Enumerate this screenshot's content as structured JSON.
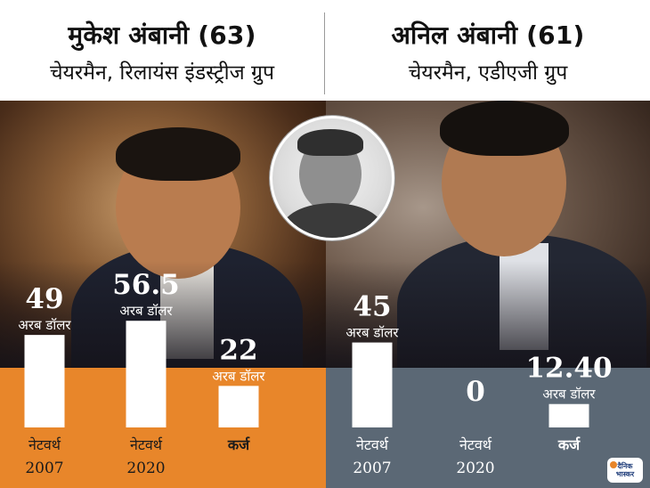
{
  "header": {
    "left": {
      "name": "मुकेश अंबानी (63)",
      "role": "चेयरमैन, रिलायंस इंडस्ट्रीज ग्रुप"
    },
    "right": {
      "name": "अनिल अंबानी (61)",
      "role": "चेयरमैन, एडीएजी ग्रुप"
    }
  },
  "logo": {
    "line1": "दैनिक",
    "line2": "भास्कर"
  },
  "colors": {
    "left_band": "#e8862a",
    "right_band": "#5b6875",
    "bar": "#ffffff",
    "value_text": "#ffffff"
  },
  "chart_data": [
    {
      "type": "bar",
      "unit": "अरब डॉलर",
      "categories": [
        "नेटवर्थ 2007",
        "नेटवर्थ 2020",
        "कर्ज"
      ],
      "category_lines": [
        [
          "नेटवर्थ",
          "2007"
        ],
        [
          "नेटवर्थ",
          "2020"
        ],
        [
          "कर्ज"
        ]
      ],
      "values": [
        49,
        56.5,
        22
      ],
      "value_labels": [
        "49",
        "56.5",
        "22"
      ]
    },
    {
      "type": "bar",
      "unit": "अरब डॉलर",
      "categories": [
        "नेटवर्थ 2007",
        "नेटवर्थ 2020",
        "कर्ज"
      ],
      "category_lines": [
        [
          "नेटवर्थ",
          "2007"
        ],
        [
          "नेटवर्थ",
          "2020"
        ],
        [
          "कर्ज"
        ]
      ],
      "values": [
        45,
        0,
        12.4
      ],
      "value_labels": [
        "45",
        "0",
        "12.40"
      ]
    }
  ]
}
